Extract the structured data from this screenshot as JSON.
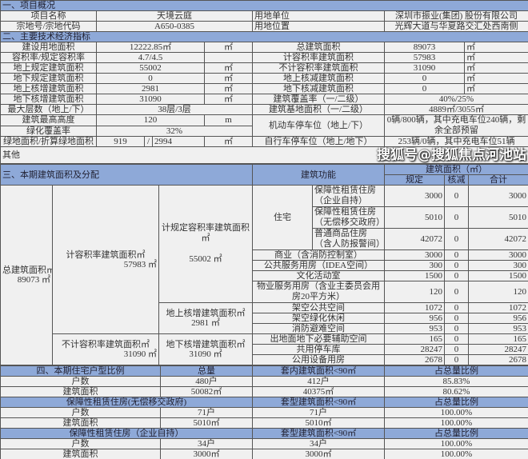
{
  "s1": {
    "title": "一、项目概况",
    "rows": [
      {
        "label": "项目名称",
        "value": "天境云庭",
        "label2": "用地单位",
        "value2": "深圳市振业(集团) 股份有限公司"
      },
      {
        "label": "宗地号/宗地代码",
        "value": "A650-0385",
        "label2": "用地位置",
        "value2": "光辉大道与华夏路交汇处西南侧"
      }
    ]
  },
  "s2": {
    "title": "二、主要技术经济指标",
    "rows": [
      {
        "label": "建设用地面积",
        "value": "12222.85㎡",
        "unit": "㎡",
        "label2": "总建筑面积",
        "value2": "89073",
        "unit2": "㎡"
      },
      {
        "label": "容积率/规定容积率",
        "value": "4.7/4.5",
        "unit": "",
        "label2": "计容积率建筑面积",
        "value2": "57983",
        "unit2": "㎡"
      },
      {
        "label": "地上规定建筑面积",
        "value": "55002",
        "unit": "㎡",
        "label2": "不计容积率建筑面积",
        "value2": "31090",
        "unit2": "㎡"
      },
      {
        "label": "地下规定建筑面积",
        "value": "0",
        "unit": "㎡",
        "label2": "地上核减建筑面积",
        "value2": "0",
        "unit2": "㎡"
      },
      {
        "label": "地上核增建筑面积",
        "value": "2981",
        "unit": "㎡",
        "label2": "地下核减建筑面积",
        "value2": "0",
        "unit2": "㎡"
      },
      {
        "label": "地下核增建筑面积",
        "value": "31090",
        "unit": "㎡",
        "label2": "建筑覆盖率（一/二级）",
        "value2": "40%/25%"
      }
    ],
    "floors_label": "最大层数（地上/下）",
    "floors_value": "38层/3层",
    "base_label": "建筑基地面积（一/二级）",
    "base_value": "4889㎡/3055㎡",
    "height_label": "建筑最高高度",
    "height_value": "120",
    "height_unit": "m",
    "green_label": "绿化覆盖率",
    "green_value": "32%",
    "car_label": "机动车停车位（地上/下）",
    "car_value": "0辆/800辆，其中充电车位240辆，剩余全部预留",
    "greenarea_label": "绿地面积/折算绿地面积",
    "greenarea_value1": "919",
    "greenarea_sep": "/",
    "greenarea_value2": "2994",
    "greenarea_unit": "㎡",
    "bike_label": "自行车停车位（地上/地下）",
    "bike_value": "253辆/0辆，其中充电车位51辆",
    "other": "其他"
  },
  "s3": {
    "title": "三、本期建筑面积及分配",
    "function_header": "建筑功能",
    "area_header": "建筑面积（㎡）",
    "col_planned": "规定",
    "col_reduced": "核减",
    "col_total": "合计",
    "total_label": "总建筑面积㎡",
    "total_value": "89073 ㎡",
    "far_label": "计容积率建筑面积㎡",
    "far_value": "57983 ㎡",
    "nonfar_label": "不计容积率建筑面积㎡",
    "nonfar_value": "31090 ㎡",
    "planned_far_label": "计规定容积率建筑面积㎡",
    "planned_far_value": "55002 ㎡",
    "above_add_label": "地上核增建筑面积㎡",
    "above_add_value": "2981 ㎡",
    "below_add_label": "地下核增建筑面积㎡",
    "below_add_value": "31090 ㎡",
    "residential": "住宅",
    "rows": [
      {
        "name": "保障性租赁住房（企业自持）",
        "planned": "3000",
        "reduced": "0",
        "total": "3000"
      },
      {
        "name": "保障性租赁住房（无偿移交政府）",
        "planned": "5010",
        "reduced": "0",
        "total": "5010"
      },
      {
        "name": "普通商品住房（含人防报警间）",
        "planned": "42072",
        "reduced": "0",
        "total": "42072"
      },
      {
        "name": "商业（含消防控制室）",
        "planned": "3000",
        "reduced": "0",
        "total": "3000"
      },
      {
        "name": "公共服务用房（IDEA空间）",
        "planned": "300",
        "reduced": "0",
        "total": "300"
      },
      {
        "name": "文化活动室",
        "planned": "1500",
        "reduced": "0",
        "total": "1500"
      },
      {
        "name": "物业服务用房（含业主委员会用房20平方米）",
        "planned": "120",
        "reduced": "0",
        "total": "120"
      },
      {
        "name": "架空公共空间",
        "planned": "1072",
        "reduced": "0",
        "total": "1072"
      },
      {
        "name": "架空绿化休闲",
        "planned": "956",
        "reduced": "0",
        "total": "956"
      },
      {
        "name": "消防避难空间",
        "planned": "953",
        "reduced": "0",
        "total": "953"
      },
      {
        "name": "出地面地下必要辅助空间",
        "planned": "165",
        "reduced": "0",
        "total": "165"
      },
      {
        "name": "共用停车库",
        "planned": "28247",
        "reduced": "0",
        "total": "28247"
      },
      {
        "name": "公用设备用房",
        "planned": "2678",
        "reduced": "0",
        "total": "2678"
      }
    ]
  },
  "s4": {
    "groups": [
      {
        "h1": "四、本期住宅户型比例",
        "h2": "总量",
        "h3": "套内建筑面积<90㎡",
        "h4": "占总量比例",
        "rows": [
          {
            "a": "户数",
            "b": "480户",
            "c": "412户",
            "d": "85.83%"
          },
          {
            "a": "建筑面积",
            "b": "50082㎡",
            "c": "40375㎡",
            "d": "80.62%"
          }
        ]
      },
      {
        "h1": "保障性租赁住房(无偿移交政府)",
        "h3": "套型建筑面积<90㎡",
        "h4": "占总量比例",
        "rows": [
          {
            "a": "户数",
            "b": "71户",
            "c": "71户",
            "d": "100.00%"
          },
          {
            "a": "建筑面积",
            "b": "5010㎡",
            "c": "5010㎡",
            "d": "100.00%"
          }
        ]
      },
      {
        "h1": "保障性租赁住房（企业自持）",
        "h3": "套型建筑面积<90㎡",
        "h4": "占总量比例",
        "rows": [
          {
            "a": "户数",
            "b": "34户",
            "c": "34户",
            "d": "100.00%"
          },
          {
            "a": "建筑面积",
            "b": "3000㎡",
            "c": "3000㎡",
            "d": "100.00%"
          }
        ]
      }
    ]
  },
  "watermark": "搜狐号@搜狐焦点河池站"
}
